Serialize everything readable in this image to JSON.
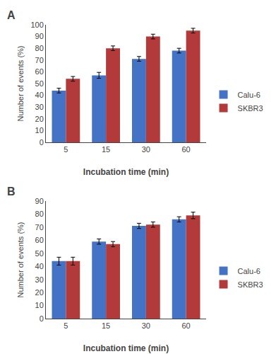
{
  "chart_data": [
    {
      "type": "bar",
      "title": "A",
      "categories": [
        "5",
        "15",
        "30",
        "60"
      ],
      "series": [
        {
          "name": "Calu-6",
          "color": "#4472C4",
          "values": [
            44,
            57,
            71,
            78
          ],
          "errors": [
            2,
            2.5,
            2,
            2
          ]
        },
        {
          "name": "SKBR3",
          "color": "#B33A3A",
          "values": [
            54,
            80,
            90,
            95
          ],
          "errors": [
            2,
            2,
            2,
            2
          ]
        }
      ],
      "xlabel": "Incubation time (min)",
      "ylabel": "Number of events (%)",
      "ylim": [
        0,
        100
      ],
      "yticks": [
        0,
        10,
        20,
        30,
        40,
        50,
        60,
        70,
        80,
        90,
        100
      ],
      "grid": false,
      "legend": "right"
    },
    {
      "type": "bar",
      "title": "B",
      "categories": [
        "5",
        "15",
        "30",
        "60"
      ],
      "series": [
        {
          "name": "Calu-6",
          "color": "#4472C4",
          "values": [
            44,
            59,
            71,
            76
          ],
          "errors": [
            3,
            2,
            2,
            2
          ]
        },
        {
          "name": "SKBR3",
          "color": "#B33A3A",
          "values": [
            44,
            57,
            72,
            79
          ],
          "errors": [
            3,
            2,
            2,
            2.5
          ]
        }
      ],
      "xlabel": "Incubation time (min)",
      "ylabel": "Number of events (%)",
      "ylim": [
        0,
        90
      ],
      "yticks": [
        0,
        10,
        20,
        30,
        40,
        50,
        60,
        70,
        80,
        90
      ],
      "grid": false,
      "legend": "right"
    }
  ]
}
